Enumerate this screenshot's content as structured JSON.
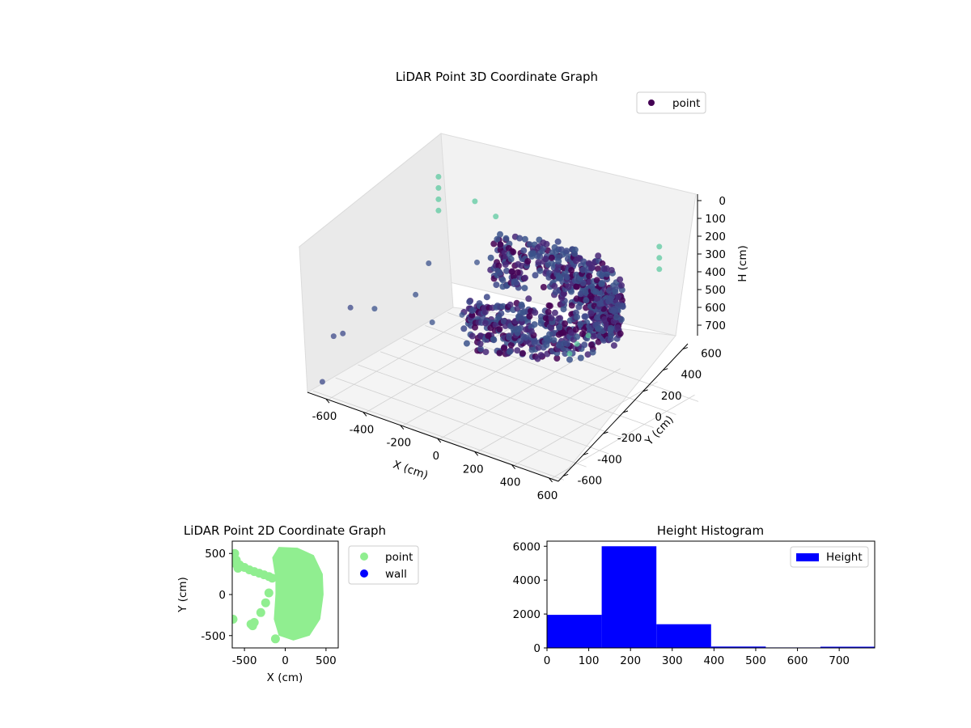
{
  "colors": {
    "point_3d_dark": "#440154",
    "point_3d_mid": "#3b528b",
    "point_3d_light": "#5ec962",
    "point_2d": "#90ee90",
    "wall": "#0000ff",
    "bar": "#0000ff"
  },
  "chart_data": [
    {
      "type": "scatter3d",
      "title": "LiDAR Point 3D Coordinate Graph",
      "xlabel": "X (cm)",
      "ylabel": "Y (cm)",
      "zlabel": "H (cm)",
      "xlim": [
        -700,
        650
      ],
      "ylim": [
        -650,
        650
      ],
      "zlim": [
        0,
        780
      ],
      "z_inverted": true,
      "xticks": [
        "-600",
        "-400",
        "-200",
        "0",
        "200",
        "400",
        "600"
      ],
      "yticks": [
        "-600",
        "-400",
        "-200",
        "0",
        "200",
        "400",
        "600"
      ],
      "zticks": [
        "0",
        "100",
        "200",
        "300",
        "400",
        "500",
        "600",
        "700"
      ],
      "legend": [
        "point"
      ],
      "legend_position": "upper-right",
      "grid": true,
      "series": [
        {
          "name": "point",
          "description_points": "dense cylindrical wall ring of radius ~450 cm centred near origin, heights 150-400, plus sparse outliers",
          "ring": {
            "cx": 50,
            "cy": 50,
            "r": 450,
            "z_min": 150,
            "z_max": 400
          },
          "outliers": [
            [
              -640,
              420,
              0
            ],
            [
              -640,
              420,
              60
            ],
            [
              -640,
              420,
              120
            ],
            [
              -640,
              420,
              180
            ],
            [
              -420,
              380,
              40
            ],
            [
              -350,
              450,
              120
            ],
            [
              -300,
              200,
              260
            ],
            [
              -250,
              300,
              320
            ],
            [
              -500,
              100,
              300
            ],
            [
              -450,
              -100,
              380
            ],
            [
              -550,
              -300,
              420
            ],
            [
              -300,
              -200,
              440
            ],
            [
              -200,
              -100,
              400
            ],
            [
              -600,
              -500,
              500
            ],
            [
              500,
              500,
              0
            ],
            [
              500,
              500,
              60
            ],
            [
              500,
              500,
              120
            ],
            [
              600,
              -300,
              160
            ],
            [
              600,
              -400,
              170
            ],
            [
              620,
              -500,
              180
            ],
            [
              -650,
              -600,
              740
            ],
            [
              -680,
              -450,
              560
            ],
            [
              -680,
              -300,
              460
            ]
          ]
        }
      ]
    },
    {
      "type": "scatter",
      "title": "LiDAR Point 2D Coordinate Graph",
      "xlabel": "X (cm)",
      "ylabel": "Y (cm)",
      "xlim": [
        -650,
        650
      ],
      "ylim": [
        -650,
        650
      ],
      "xticks": [
        "-500",
        "0",
        "500"
      ],
      "yticks": [
        "500",
        "0",
        "-500"
      ],
      "legend": [
        "point",
        "wall"
      ],
      "legend_position": "outside-right",
      "series": [
        {
          "name": "point",
          "shape": "filled disc roughly covering x -130..470, y -560..560 with sparse points to the left"
        },
        {
          "name": "wall",
          "points": []
        }
      ]
    },
    {
      "type": "bar",
      "title": "Height Histogram",
      "xlabel": "",
      "ylabel": "",
      "xlim": [
        0,
        785
      ],
      "ylim": [
        0,
        6300
      ],
      "xticks": [
        "0",
        "100",
        "200",
        "300",
        "400",
        "500",
        "600",
        "700"
      ],
      "yticks": [
        "0",
        "2000",
        "4000",
        "6000"
      ],
      "legend": [
        "Height"
      ],
      "legend_position": "upper-right",
      "bins": [
        {
          "start": 0,
          "end": 131,
          "count": 1950
        },
        {
          "start": 131,
          "end": 262,
          "count": 6000
        },
        {
          "start": 262,
          "end": 393,
          "count": 1400
        },
        {
          "start": 393,
          "end": 524,
          "count": 80
        },
        {
          "start": 524,
          "end": 655,
          "count": 30
        },
        {
          "start": 655,
          "end": 785,
          "count": 70
        }
      ]
    }
  ]
}
